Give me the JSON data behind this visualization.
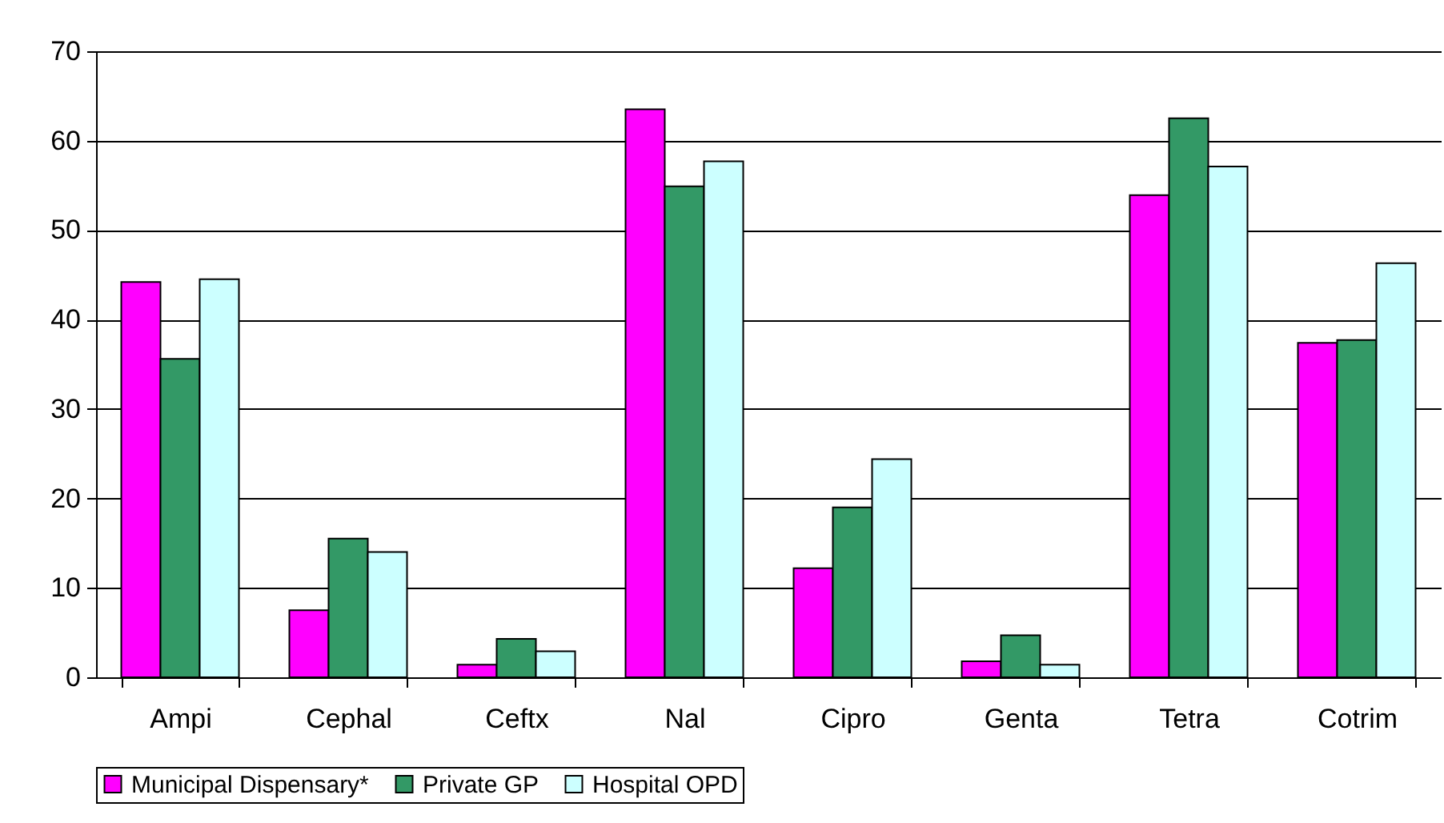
{
  "chart_data": {
    "type": "bar",
    "categories": [
      "Ampi",
      "Cephal",
      "Ceftx",
      "Nal",
      "Cipro",
      "Genta",
      "Tetra",
      "Cotrim"
    ],
    "series": [
      {
        "name": "Municipal Dispensary*",
        "color": "#ff00ff",
        "values": [
          44.2,
          7.5,
          1.4,
          63.5,
          12.2,
          1.8,
          53.9,
          37.4
        ]
      },
      {
        "name": "Private GP",
        "color": "#339966",
        "values": [
          35.6,
          15.5,
          4.3,
          54.9,
          19.0,
          4.7,
          62.5,
          37.7
        ]
      },
      {
        "name": "Hospital OPD",
        "color": "#ccffff",
        "values": [
          44.5,
          14.0,
          2.9,
          57.7,
          24.4,
          1.4,
          57.1,
          46.3
        ]
      }
    ],
    "ylim": [
      0,
      70
    ],
    "yticks": [
      0,
      10,
      20,
      30,
      40,
      50,
      60,
      70
    ],
    "grid": "y",
    "legend": "bottom"
  }
}
